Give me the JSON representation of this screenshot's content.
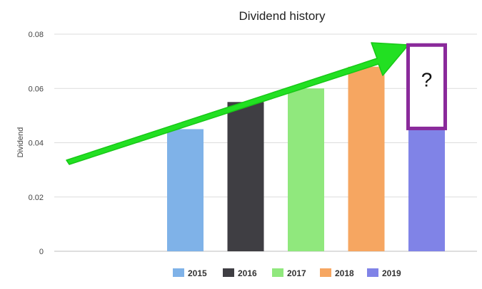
{
  "chart_data": {
    "type": "bar",
    "title": "Dividend history",
    "xlabel": "",
    "ylabel": "Dividend",
    "ylim": [
      0,
      0.08
    ],
    "yticks": [
      0,
      0.02,
      0.04,
      0.06,
      0.08
    ],
    "ytick_labels": [
      "0",
      "0.02",
      "0.04",
      "0.06",
      "0.08"
    ],
    "grid": true,
    "legend_position": "bottom",
    "categories": [
      "2015",
      "2016",
      "2017",
      "2018",
      "2019"
    ],
    "series": [
      {
        "name": "2015",
        "values": [
          0.045,
          null,
          null,
          null,
          null
        ],
        "color": "#7fb2e8"
      },
      {
        "name": "2016",
        "values": [
          null,
          0.055,
          null,
          null,
          null
        ],
        "color": "#3f3e43"
      },
      {
        "name": "2017",
        "values": [
          null,
          null,
          0.06,
          null,
          null
        ],
        "color": "#90e87d"
      },
      {
        "name": "2018",
        "values": [
          null,
          null,
          null,
          0.068,
          null
        ],
        "color": "#f6a661"
      },
      {
        "name": "2019",
        "values": [
          null,
          null,
          null,
          null,
          0.045
        ],
        "color": "#8083e7"
      }
    ],
    "annotations": [
      {
        "type": "arrow",
        "color": "#22e022",
        "meaning": "upward trend"
      },
      {
        "type": "box",
        "text": "?",
        "color": "#8a2a9b",
        "category": "2019",
        "range": [
          0.045,
          0.076
        ]
      }
    ]
  }
}
